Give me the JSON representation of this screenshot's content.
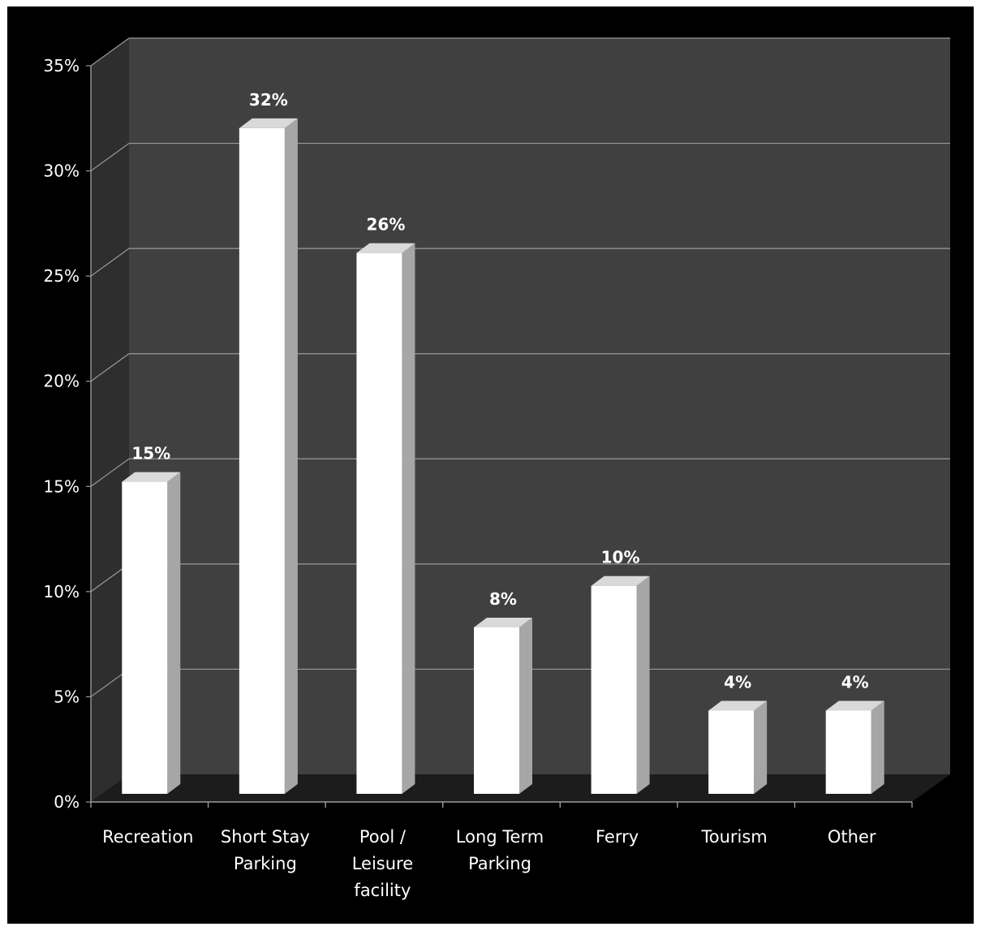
{
  "chart_data": {
    "type": "bar",
    "title": "",
    "xlabel": "",
    "ylabel": "",
    "categories": [
      [
        "Recreation"
      ],
      [
        "Short Stay",
        "Parking"
      ],
      [
        "Pool /",
        "Leisure",
        "facility"
      ],
      [
        "Long Term",
        "Parking"
      ],
      [
        "Ferry"
      ],
      [
        "Tourism"
      ],
      [
        "Other"
      ]
    ],
    "values": [
      15,
      32,
      26,
      8,
      10,
      4,
      4
    ],
    "data_labels": [
      "15%",
      "32%",
      "26%",
      "8%",
      "10%",
      "4%",
      "4%"
    ],
    "ylim": [
      0,
      35
    ],
    "yticks": [
      0,
      5,
      10,
      15,
      20,
      25,
      30,
      35
    ],
    "ytick_labels": [
      "0%",
      "5%",
      "10%",
      "15%",
      "20%",
      "25%",
      "30%",
      "35%"
    ],
    "grid": true,
    "legend": "none",
    "style": "3d-column",
    "colors": {
      "background": "#000000",
      "back_wall": "#404040",
      "side_wall": "#2e2e2e",
      "floor": "#1c1c1c",
      "gridline": "#9a9a9a",
      "bar_front": "#ffffff",
      "bar_side": "#a6a6a6",
      "bar_top": "#d9d9d9",
      "text": "#ffffff"
    }
  }
}
